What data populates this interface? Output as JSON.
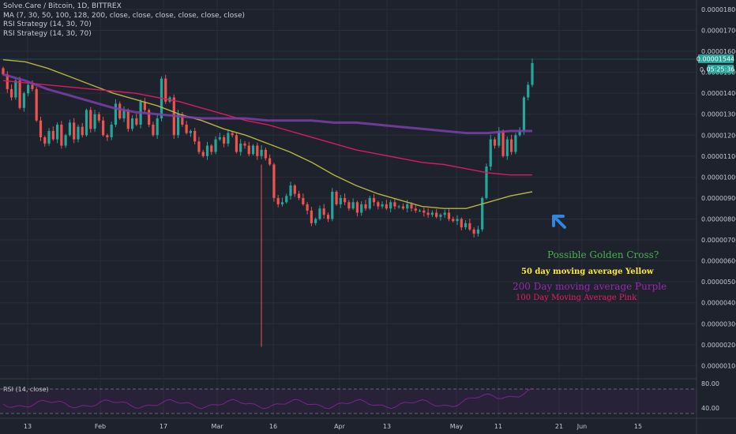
{
  "legend": {
    "symbol": "Solve.Care / Bitcoin, 1D, BITTREX",
    "ma": "MA (7, 30, 50, 100, 128, 200, close, close, close, close, close, close)",
    "rsi_strategy_1": "RSI Strategy (14, 30, 70)",
    "rsi_strategy_2": "RSI Strategy (14, 30, 70)"
  },
  "rsi_pane": {
    "label": "RSI (14, close)",
    "levels": [
      "80.00",
      "40.00"
    ]
  },
  "price_tag": {
    "price": "0.00001544",
    "countdown": "05:25:36",
    "hidden_label": "0."
  },
  "annotations": {
    "golden_cross": "Possible Golden Cross?",
    "ma50": "50 day moving average Yellow",
    "ma200": "200 Day moving average Purple",
    "ma100": "100 Day Moving Average Pink"
  },
  "colors": {
    "background": "#1e222d",
    "up": "#26a69a",
    "down": "#ef5350",
    "ma50": "#b5b443",
    "ma100": "#d81b60",
    "ma200": "#7b3fa8",
    "rsi": "#9c27b0",
    "arrow": "#2e86de"
  },
  "chart_data": {
    "type": "candlestick",
    "x_ticks": [
      "13",
      "Feb",
      "17",
      "Mar",
      "16",
      "Apr",
      "13",
      "May",
      "11",
      "21",
      "Jun",
      "15"
    ],
    "y_ticks": [
      "0.00001800",
      "0.00001700",
      "0.00001600",
      "0.00001500",
      "0.00001400",
      "0.00001300",
      "0.00001200",
      "0.00001100",
      "0.00001000",
      "0.00000900",
      "0.00000800",
      "0.00000700",
      "0.00000600",
      "0.00000500",
      "0.00000400",
      "0.00000300",
      "0.00000200",
      "0.00000100"
    ],
    "ylim": [
      4.5e-07,
      1.845e-05
    ],
    "current_price": 1.544e-05,
    "candles_close": [
      1.49e-05,
      1.42e-05,
      1.38e-05,
      1.46e-05,
      1.33e-05,
      1.4e-05,
      1.44e-05,
      1.42e-05,
      1.27e-05,
      1.19e-05,
      1.16e-05,
      1.22e-05,
      1.18e-05,
      1.25e-05,
      1.15e-05,
      1.2e-05,
      1.26e-05,
      1.18e-05,
      1.24e-05,
      1.2e-05,
      1.32e-05,
      1.23e-05,
      1.3e-05,
      1.27e-05,
      1.2e-05,
      1.19e-05,
      1.25e-05,
      1.35e-05,
      1.28e-05,
      1.32e-05,
      1.23e-05,
      1.28e-05,
      1.25e-05,
      1.36e-05,
      1.32e-05,
      1.25e-05,
      1.2e-05,
      1.28e-05,
      1.47e-05,
      1.36e-05,
      1.38e-05,
      1.2e-05,
      1.3e-05,
      1.25e-05,
      1.21e-05,
      1.22e-05,
      1.17e-05,
      1.12e-05,
      1.1e-05,
      1.15e-05,
      1.12e-05,
      1.18e-05,
      1.19e-05,
      1.16e-05,
      1.21e-05,
      1.2e-05,
      1.12e-05,
      1.16e-05,
      1.15e-05,
      1.11e-05,
      1.15e-05,
      1.1e-05,
      1.13e-05,
      1.09e-05,
      1.06e-05,
      9e-06,
      8.7e-06,
      8.8e-06,
      9.1e-06,
      9.6e-06,
      9.2e-06,
      9e-06,
      8.7e-06,
      8.4e-06,
      7.8e-06,
      8e-06,
      8.5e-06,
      8.2e-06,
      8e-06,
      9.3e-06,
      8.7e-06,
      9e-06,
      8.8e-06,
      8.5e-06,
      8.8e-06,
      8.3e-06,
      8.7e-06,
      8.5e-06,
      9e-06,
      8.8e-06,
      8.6e-06,
      8.7e-06,
      8.5e-06,
      8.8e-06,
      8.6e-06,
      8.6e-06,
      8.5e-06,
      8.7e-06,
      8.5e-06,
      8.4e-06,
      8.4e-06,
      8.3e-06,
      8.2e-06,
      8.3e-06,
      8.1e-06,
      8.2e-06,
      8.3e-06,
      8e-06,
      7.9e-06,
      8e-06,
      7.6e-06,
      7.8e-06,
      7.5e-06,
      7.3e-06,
      7.5e-06,
      9e-06,
      1.05e-05,
      1.18e-05,
      1.15e-05,
      1.22e-05,
      1.1e-05,
      1.18e-05,
      1.12e-05,
      1.2e-05,
      1.22e-05,
      1.38e-05,
      1.44e-05,
      1.544e-05
    ],
    "series": [
      {
        "name": "50 day moving average Yellow",
        "values": [
          1.56e-05,
          1.55e-05,
          1.52e-05,
          1.48e-05,
          1.44e-05,
          1.4e-05,
          1.37e-05,
          1.34e-05,
          1.3e-05,
          1.27e-05,
          1.23e-05,
          1.2e-05,
          1.16e-05,
          1.12e-05,
          1.07e-05,
          1.01e-05,
          9.6e-06,
          9.2e-06,
          8.9e-06,
          8.6e-06,
          8.5e-06,
          8.5e-06,
          8.8e-06,
          9.1e-06,
          9.3e-06
        ]
      },
      {
        "name": "100 Day Moving Average Pink",
        "values": [
          1.46e-05,
          1.45e-05,
          1.44e-05,
          1.43e-05,
          1.42e-05,
          1.41e-05,
          1.4e-05,
          1.38e-05,
          1.36e-05,
          1.33e-05,
          1.3e-05,
          1.27e-05,
          1.25e-05,
          1.22e-05,
          1.19e-05,
          1.16e-05,
          1.13e-05,
          1.11e-05,
          1.09e-05,
          1.07e-05,
          1.06e-05,
          1.04e-05,
          1.02e-05,
          1.01e-05,
          1.01e-05
        ]
      },
      {
        "name": "200 Day moving average Purple",
        "values": [
          1.49e-05,
          1.46e-05,
          1.42e-05,
          1.39e-05,
          1.36e-05,
          1.33e-05,
          1.31e-05,
          1.3e-05,
          1.29e-05,
          1.28e-05,
          1.28e-05,
          1.28e-05,
          1.27e-05,
          1.27e-05,
          1.27e-05,
          1.26e-05,
          1.26e-05,
          1.25e-05,
          1.24e-05,
          1.23e-05,
          1.22e-05,
          1.21e-05,
          1.21e-05,
          1.22e-05,
          1.22e-05
        ]
      }
    ]
  }
}
